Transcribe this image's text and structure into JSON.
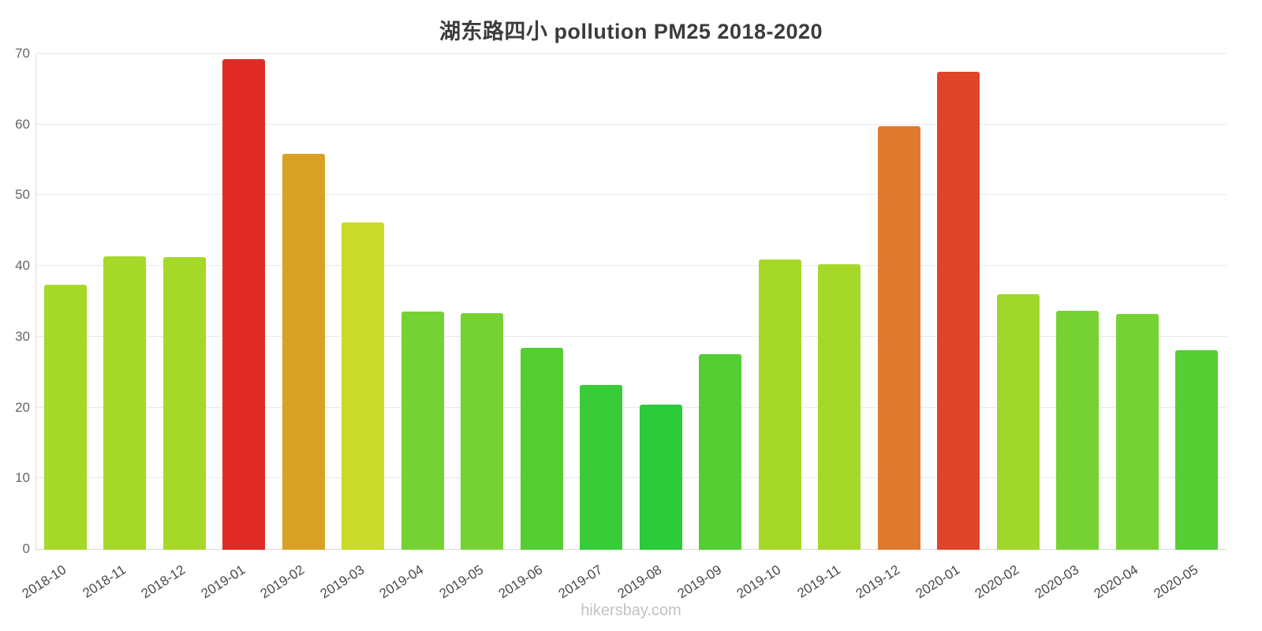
{
  "title": "湖东路四小 pollution PM25 2018-2020",
  "footer": "hikersbay.com",
  "chart_data": {
    "type": "bar",
    "title": "湖东路四小 pollution PM25 2018-2020",
    "xlabel": "",
    "ylabel": "",
    "ylim": [
      0,
      70
    ],
    "yticks": [
      0,
      10,
      20,
      30,
      40,
      50,
      60,
      70
    ],
    "grid": true,
    "legend": "none",
    "categories": [
      "2018-10",
      "2018-11",
      "2018-12",
      "2019-01",
      "2019-02",
      "2019-03",
      "2019-04",
      "2019-05",
      "2019-06",
      "2019-07",
      "2019-08",
      "2019-09",
      "2019-10",
      "2019-11",
      "2019-12",
      "2020-01",
      "2020-02",
      "2020-03",
      "2020-04",
      "2020-05"
    ],
    "values": [
      37.5,
      41.5,
      41.3,
      69.3,
      56.0,
      46.3,
      33.7,
      33.4,
      28.5,
      23.3,
      20.5,
      27.6,
      41.0,
      40.4,
      59.9,
      67.5,
      36.1,
      33.8,
      33.3,
      28.2
    ],
    "colors": [
      "#a6d829",
      "#a6d829",
      "#a6d829",
      "#e02b27",
      "#d9a126",
      "#c9da28",
      "#76d233",
      "#76d233",
      "#54ce33",
      "#37cc38",
      "#2bcb3a",
      "#54ce33",
      "#a6d829",
      "#a6d829",
      "#e0792e",
      "#e0442b",
      "#a0d72b",
      "#76d233",
      "#76d233",
      "#54ce33"
    ],
    "grid_color": "#e9e9e9",
    "axis_color": "#d9d9d9",
    "tick_label_color": "#666666",
    "x_label_color": "#4a4a4a"
  }
}
